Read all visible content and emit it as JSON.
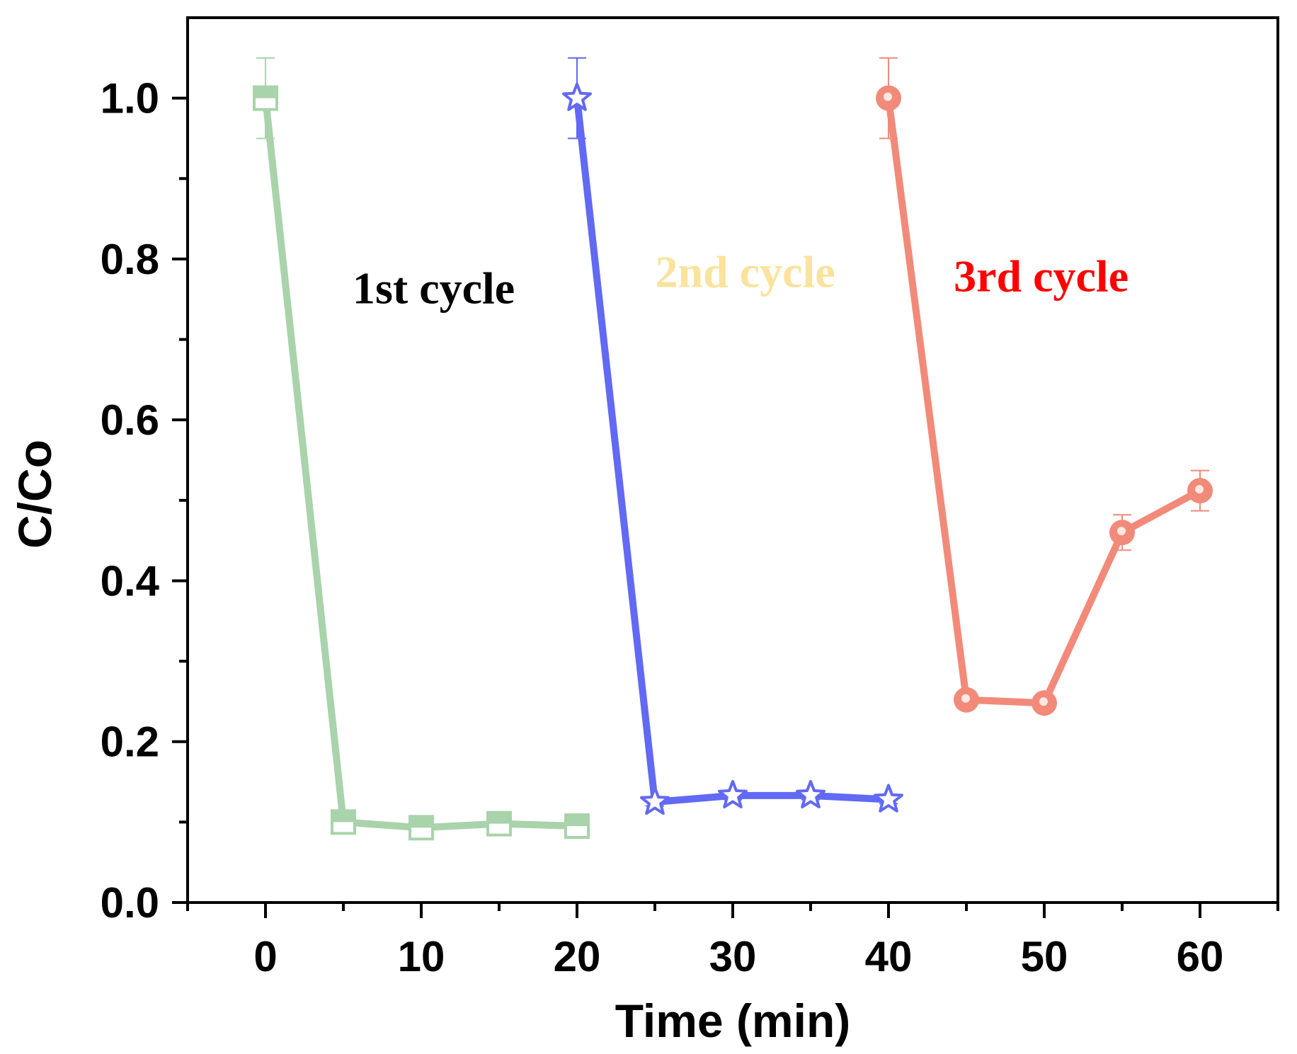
{
  "chart_data": {
    "type": "line",
    "title": "",
    "xlabel": "Time (min)",
    "ylabel": "C/Co",
    "xlim": [
      -5,
      65
    ],
    "ylim": [
      0,
      1.1
    ],
    "x_ticks": [
      0,
      10,
      20,
      30,
      40,
      50,
      60
    ],
    "x_tick_labels": [
      "0",
      "10",
      "20",
      "30",
      "40",
      "50",
      "60"
    ],
    "y_ticks": [
      0.0,
      0.2,
      0.4,
      0.6,
      0.8,
      1.0
    ],
    "y_tick_labels": [
      "0.0",
      "0.2",
      "0.4",
      "0.6",
      "0.8",
      "1.0"
    ],
    "grid": false,
    "series": [
      {
        "name": "1st cycle",
        "color": "#a9d3ab",
        "marker": "square",
        "x": [
          0,
          5,
          10,
          15,
          20
        ],
        "values": [
          1.0,
          0.1,
          0.093,
          0.098,
          0.095
        ],
        "error": [
          0.05,
          0.01,
          0.01,
          0.01,
          0.01
        ]
      },
      {
        "name": "2nd cycle",
        "color": "#6269f4",
        "marker": "star",
        "x": [
          20,
          25,
          30,
          35,
          40
        ],
        "values": [
          1.0,
          0.125,
          0.133,
          0.133,
          0.128
        ],
        "error": [
          0.05,
          0.005,
          0.005,
          0.005,
          0.005
        ]
      },
      {
        "name": "3rd cycle",
        "color": "#f28a7a",
        "marker": "circle",
        "x": [
          40,
          45,
          50,
          55,
          60
        ],
        "values": [
          1.0,
          0.252,
          0.248,
          0.46,
          0.512
        ],
        "error": [
          0.05,
          0.005,
          0.005,
          0.022,
          0.025
        ]
      }
    ],
    "annotations": [
      {
        "text": "1st cycle",
        "color": "#000000",
        "x": 10.8,
        "y": 0.745
      },
      {
        "text": "2nd cycle",
        "color": "#fbe29d",
        "x": 30.8,
        "y": 0.765
      },
      {
        "text": "3rd cycle",
        "color": "#ff0000",
        "x": 49.8,
        "y": 0.76
      }
    ]
  }
}
